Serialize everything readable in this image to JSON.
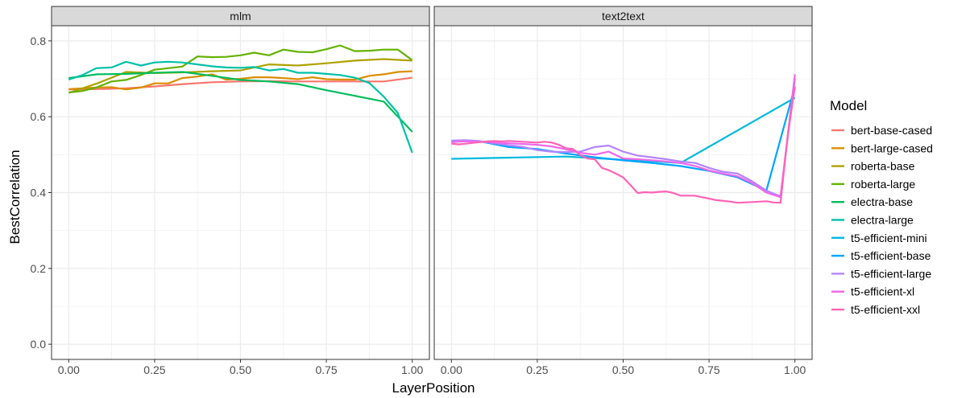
{
  "chart_data": {
    "type": "line",
    "xlabel": "LayerPosition",
    "ylabel": "BestCorrelation",
    "xlim": [
      -0.05,
      1.05
    ],
    "ylim": [
      -0.04,
      0.84
    ],
    "x_ticks": [
      0,
      0.25,
      0.5,
      0.75,
      1
    ],
    "x_tick_labels": [
      "0.00",
      "0.25",
      "0.50",
      "0.75",
      "1.00"
    ],
    "y_ticks": [
      0,
      0.2,
      0.4,
      0.6,
      0.8
    ],
    "y_tick_labels": [
      "0.0",
      "0.2",
      "0.4",
      "0.6",
      "0.8"
    ],
    "grid": true,
    "legend": {
      "title": "Model",
      "position": "right",
      "entries": [
        {
          "name": "bert-base-cased",
          "color": "#F8766D"
        },
        {
          "name": "bert-large-cased",
          "color": "#DB8E00"
        },
        {
          "name": "roberta-base",
          "color": "#AEA200"
        },
        {
          "name": "roberta-large",
          "color": "#64B200"
        },
        {
          "name": "electra-base",
          "color": "#00BD5C"
        },
        {
          "name": "electra-large",
          "color": "#00C1A7"
        },
        {
          "name": "t5-efficient-mini",
          "color": "#00BADE"
        },
        {
          "name": "t5-efficient-base",
          "color": "#00A6FF"
        },
        {
          "name": "t5-efficient-large",
          "color": "#B385FF"
        },
        {
          "name": "t5-efficient-xl",
          "color": "#EF67EB"
        },
        {
          "name": "t5-efficient-xxl",
          "color": "#FF63B6"
        }
      ]
    },
    "panels": [
      {
        "title": "mlm",
        "series": [
          {
            "name": "bert-base-cased",
            "color": "#F8766D",
            "x": [
              0,
              0.083,
              0.167,
              0.25,
              0.333,
              0.417,
              0.5,
              0.583,
              0.667,
              0.75,
              0.833,
              0.917,
              1.0
            ],
            "y": [
              0.672,
              0.673,
              0.675,
              0.68,
              0.686,
              0.691,
              0.693,
              0.694,
              0.693,
              0.693,
              0.693,
              0.693,
              0.703
            ]
          },
          {
            "name": "bert-large-cased",
            "color": "#DB8E00",
            "x": [
              0,
              0.04,
              0.08,
              0.125,
              0.167,
              0.21,
              0.25,
              0.29,
              0.33,
              0.375,
              0.417,
              0.458,
              0.5,
              0.54,
              0.583,
              0.625,
              0.667,
              0.71,
              0.75,
              0.79,
              0.833,
              0.875,
              0.917,
              0.958,
              1.0
            ],
            "y": [
              0.673,
              0.675,
              0.677,
              0.678,
              0.672,
              0.677,
              0.688,
              0.688,
              0.702,
              0.706,
              0.712,
              0.698,
              0.7,
              0.704,
              0.704,
              0.702,
              0.699,
              0.704,
              0.699,
              0.698,
              0.698,
              0.708,
              0.712,
              0.718,
              0.72
            ]
          },
          {
            "name": "roberta-base",
            "color": "#AEA200",
            "x": [
              0,
              0.083,
              0.167,
              0.25,
              0.333,
              0.417,
              0.5,
              0.583,
              0.667,
              0.75,
              0.833,
              0.917,
              1.0
            ],
            "y": [
              0.663,
              0.688,
              0.718,
              0.715,
              0.717,
              0.72,
              0.722,
              0.738,
              0.735,
              0.741,
              0.748,
              0.752,
              0.748
            ]
          },
          {
            "name": "roberta-large",
            "color": "#64B200",
            "x": [
              0,
              0.04,
              0.08,
              0.125,
              0.167,
              0.21,
              0.25,
              0.29,
              0.33,
              0.375,
              0.417,
              0.458,
              0.5,
              0.54,
              0.583,
              0.625,
              0.667,
              0.71,
              0.75,
              0.79,
              0.833,
              0.875,
              0.917,
              0.958,
              1.0
            ],
            "y": [
              0.664,
              0.668,
              0.677,
              0.693,
              0.697,
              0.71,
              0.724,
              0.728,
              0.732,
              0.759,
              0.757,
              0.758,
              0.762,
              0.769,
              0.762,
              0.777,
              0.771,
              0.77,
              0.778,
              0.788,
              0.773,
              0.774,
              0.777,
              0.777,
              0.749
            ]
          },
          {
            "name": "electra-base",
            "color": "#00BD5C",
            "x": [
              0,
              0.083,
              0.167,
              0.25,
              0.333,
              0.417,
              0.5,
              0.583,
              0.667,
              0.75,
              0.833,
              0.917,
              1.0
            ],
            "y": [
              0.702,
              0.712,
              0.713,
              0.716,
              0.718,
              0.708,
              0.697,
              0.693,
              0.686,
              0.67,
              0.655,
              0.64,
              0.56
            ]
          },
          {
            "name": "electra-large",
            "color": "#00C1A7",
            "x": [
              0,
              0.04,
              0.08,
              0.125,
              0.167,
              0.21,
              0.25,
              0.29,
              0.33,
              0.375,
              0.417,
              0.458,
              0.5,
              0.54,
              0.583,
              0.625,
              0.667,
              0.71,
              0.75,
              0.79,
              0.833,
              0.875,
              0.917,
              0.958,
              1.0
            ],
            "y": [
              0.698,
              0.71,
              0.728,
              0.73,
              0.745,
              0.735,
              0.743,
              0.745,
              0.743,
              0.738,
              0.733,
              0.73,
              0.729,
              0.731,
              0.722,
              0.726,
              0.716,
              0.716,
              0.713,
              0.71,
              0.703,
              0.689,
              0.653,
              0.61,
              0.505
            ]
          }
        ]
      },
      {
        "title": "text2text",
        "series": [
          {
            "name": "t5-efficient-mini",
            "color": "#00BADE",
            "x": [
              0,
              0.333,
              0.667,
              1.0
            ],
            "y": [
              0.489,
              0.495,
              0.478,
              0.65
            ]
          },
          {
            "name": "t5-efficient-base",
            "color": "#00A6FF",
            "x": [
              0,
              0.083,
              0.167,
              0.25,
              0.333,
              0.417,
              0.5,
              0.583,
              0.667,
              0.75,
              0.833,
              0.917,
              1.0
            ],
            "y": [
              0.535,
              0.535,
              0.52,
              0.515,
              0.503,
              0.493,
              0.485,
              0.478,
              0.47,
              0.457,
              0.44,
              0.405,
              0.68
            ]
          },
          {
            "name": "t5-efficient-large",
            "color": "#B385FF",
            "x": [
              0,
              0.04,
              0.08,
              0.125,
              0.167,
              0.21,
              0.25,
              0.29,
              0.33,
              0.375,
              0.417,
              0.458,
              0.5,
              0.54,
              0.583,
              0.625,
              0.667,
              0.71,
              0.75,
              0.79,
              0.833,
              0.875,
              0.917,
              0.958,
              1.0
            ],
            "y": [
              0.537,
              0.538,
              0.536,
              0.53,
              0.525,
              0.52,
              0.512,
              0.508,
              0.507,
              0.508,
              0.52,
              0.524,
              0.508,
              0.498,
              0.493,
              0.488,
              0.482,
              0.478,
              0.465,
              0.455,
              0.45,
              0.43,
              0.405,
              0.39,
              0.7
            ]
          },
          {
            "name": "t5-efficient-xl",
            "color": "#EF67EB",
            "x": [
              0,
              0.04,
              0.08,
              0.125,
              0.167,
              0.21,
              0.25,
              0.29,
              0.33,
              0.375,
              0.417,
              0.458,
              0.5,
              0.54,
              0.583,
              0.625,
              0.667,
              0.71,
              0.75,
              0.79,
              0.833,
              0.875,
              0.917,
              0.958,
              1.0
            ],
            "y": [
              0.533,
              0.535,
              0.534,
              0.532,
              0.53,
              0.528,
              0.526,
              0.522,
              0.515,
              0.505,
              0.5,
              0.508,
              0.49,
              0.488,
              0.485,
              0.482,
              0.478,
              0.47,
              0.458,
              0.45,
              0.443,
              0.425,
              0.4,
              0.388,
              0.712
            ]
          },
          {
            "name": "t5-efficient-xxl",
            "color": "#FF63B6",
            "x": [
              0,
              0.021,
              0.042,
              0.063,
              0.083,
              0.104,
              0.125,
              0.146,
              0.167,
              0.188,
              0.208,
              0.229,
              0.25,
              0.271,
              0.292,
              0.313,
              0.333,
              0.354,
              0.375,
              0.396,
              0.417,
              0.438,
              0.458,
              0.479,
              0.5,
              0.521,
              0.542,
              0.563,
              0.583,
              0.604,
              0.625,
              0.646,
              0.667,
              0.688,
              0.708,
              0.729,
              0.75,
              0.771,
              0.792,
              0.813,
              0.833,
              0.854,
              0.875,
              0.896,
              0.917,
              0.938,
              0.958,
              0.979,
              1.0
            ],
            "y": [
              0.529,
              0.527,
              0.529,
              0.531,
              0.533,
              0.535,
              0.536,
              0.535,
              0.536,
              0.535,
              0.534,
              0.533,
              0.532,
              0.534,
              0.532,
              0.526,
              0.517,
              0.515,
              0.499,
              0.49,
              0.488,
              0.465,
              0.459,
              0.45,
              0.44,
              0.42,
              0.399,
              0.401,
              0.4,
              0.402,
              0.403,
              0.399,
              0.392,
              0.392,
              0.392,
              0.388,
              0.384,
              0.38,
              0.378,
              0.376,
              0.373,
              0.374,
              0.375,
              0.376,
              0.377,
              0.374,
              0.373,
              0.55,
              0.68
            ]
          }
        ]
      }
    ]
  }
}
